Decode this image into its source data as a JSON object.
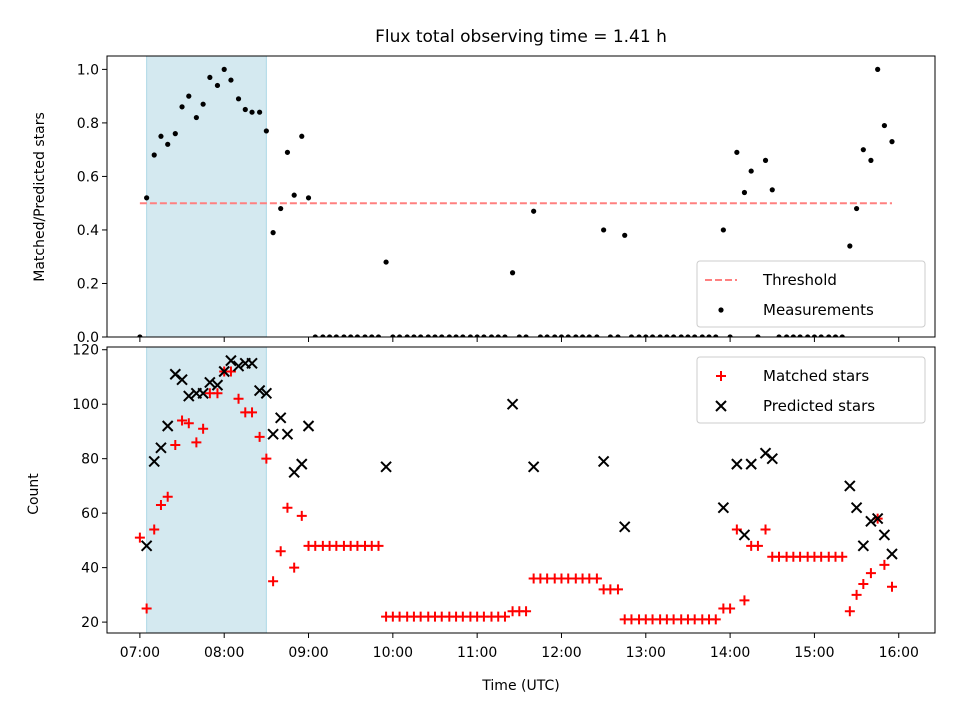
{
  "chart_data": [
    {
      "type": "scatter",
      "title": "Flux total observing time = 1.41 h",
      "ylabel": "Matched/Predicted stars",
      "xlabel": "",
      "xlim_hours": [
        6.61,
        16.43
      ],
      "ylim": [
        0,
        1.05
      ],
      "yticks": [
        0.0,
        0.2,
        0.4,
        0.6,
        0.8,
        1.0
      ],
      "ytick_labels": [
        "0.0",
        "0.2",
        "0.4",
        "0.6",
        "0.8",
        "1.0"
      ],
      "shaded_span_hours": [
        7.08,
        8.5
      ],
      "shaded_color": "#d4e9f0",
      "grid": false,
      "legend_position": "lower-right",
      "legend": [
        "Threshold",
        "Measurements"
      ],
      "threshold": {
        "name": "Threshold",
        "y": 0.5,
        "x_start": 7.0,
        "x_end": 15.92,
        "color": "#ff8080",
        "style": "dashed"
      },
      "series": [
        {
          "name": "Measurements",
          "color": "#000000",
          "points": [
            [
              7.0,
              0.0
            ],
            [
              7.08,
              0.52
            ],
            [
              7.17,
              0.68
            ],
            [
              7.25,
              0.75
            ],
            [
              7.33,
              0.72
            ],
            [
              7.42,
              0.76
            ],
            [
              7.5,
              0.86
            ],
            [
              7.58,
              0.9
            ],
            [
              7.67,
              0.82
            ],
            [
              7.75,
              0.87
            ],
            [
              7.83,
              0.97
            ],
            [
              7.92,
              0.94
            ],
            [
              8.0,
              1.0
            ],
            [
              8.08,
              0.96
            ],
            [
              8.17,
              0.89
            ],
            [
              8.25,
              0.85
            ],
            [
              8.33,
              0.84
            ],
            [
              8.42,
              0.84
            ],
            [
              8.5,
              0.77
            ],
            [
              8.58,
              0.39
            ],
            [
              8.67,
              0.48
            ],
            [
              8.75,
              0.69
            ],
            [
              8.83,
              0.53
            ],
            [
              8.92,
              0.75
            ],
            [
              9.0,
              0.52
            ],
            [
              9.08,
              0.0
            ],
            [
              9.17,
              0.0
            ],
            [
              9.25,
              0.0
            ],
            [
              9.33,
              0.0
            ],
            [
              9.42,
              0.0
            ],
            [
              9.5,
              0.0
            ],
            [
              9.58,
              0.0
            ],
            [
              9.67,
              0.0
            ],
            [
              9.75,
              0.0
            ],
            [
              9.83,
              0.0
            ],
            [
              9.92,
              0.28
            ],
            [
              10.0,
              0.0
            ],
            [
              10.08,
              0.0
            ],
            [
              10.17,
              0.0
            ],
            [
              10.25,
              0.0
            ],
            [
              10.33,
              0.0
            ],
            [
              10.42,
              0.0
            ],
            [
              10.5,
              0.0
            ],
            [
              10.58,
              0.0
            ],
            [
              10.67,
              0.0
            ],
            [
              10.75,
              0.0
            ],
            [
              10.83,
              0.0
            ],
            [
              10.92,
              0.0
            ],
            [
              11.0,
              0.0
            ],
            [
              11.08,
              0.0
            ],
            [
              11.17,
              0.0
            ],
            [
              11.25,
              0.0
            ],
            [
              11.33,
              0.0
            ],
            [
              11.42,
              0.24
            ],
            [
              11.5,
              0.0
            ],
            [
              11.58,
              0.0
            ],
            [
              11.67,
              0.47
            ],
            [
              11.75,
              0.0
            ],
            [
              11.83,
              0.0
            ],
            [
              11.92,
              0.0
            ],
            [
              12.0,
              0.0
            ],
            [
              12.08,
              0.0
            ],
            [
              12.17,
              0.0
            ],
            [
              12.25,
              0.0
            ],
            [
              12.33,
              0.0
            ],
            [
              12.42,
              0.0
            ],
            [
              12.5,
              0.4
            ],
            [
              12.58,
              0.0
            ],
            [
              12.67,
              0.0
            ],
            [
              12.75,
              0.38
            ],
            [
              12.83,
              0.0
            ],
            [
              12.92,
              0.0
            ],
            [
              13.0,
              0.0
            ],
            [
              13.08,
              0.0
            ],
            [
              13.17,
              0.0
            ],
            [
              13.25,
              0.0
            ],
            [
              13.33,
              0.0
            ],
            [
              13.42,
              0.0
            ],
            [
              13.5,
              0.0
            ],
            [
              13.58,
              0.0
            ],
            [
              13.67,
              0.0
            ],
            [
              13.75,
              0.0
            ],
            [
              13.83,
              0.0
            ],
            [
              13.92,
              0.4
            ],
            [
              14.0,
              0.0
            ],
            [
              14.08,
              0.69
            ],
            [
              14.17,
              0.54
            ],
            [
              14.25,
              0.62
            ],
            [
              14.33,
              0.0
            ],
            [
              14.42,
              0.66
            ],
            [
              14.5,
              0.55
            ],
            [
              14.58,
              0.0
            ],
            [
              14.67,
              0.0
            ],
            [
              14.75,
              0.0
            ],
            [
              14.83,
              0.0
            ],
            [
              14.92,
              0.0
            ],
            [
              15.0,
              0.0
            ],
            [
              15.08,
              0.0
            ],
            [
              15.17,
              0.0
            ],
            [
              15.25,
              0.0
            ],
            [
              15.33,
              0.0
            ],
            [
              15.42,
              0.34
            ],
            [
              15.5,
              0.48
            ],
            [
              15.58,
              0.7
            ],
            [
              15.67,
              0.66
            ],
            [
              15.75,
              1.0
            ],
            [
              15.83,
              0.79
            ],
            [
              15.92,
              0.73
            ]
          ]
        }
      ]
    },
    {
      "type": "scatter",
      "title": "",
      "ylabel": "Count",
      "xlabel": "Time (UTC)",
      "xlim_hours": [
        6.61,
        16.43
      ],
      "xticks_hours": [
        7,
        8,
        9,
        10,
        11,
        12,
        13,
        14,
        15,
        16
      ],
      "xtick_labels": [
        "07:00",
        "08:00",
        "09:00",
        "10:00",
        "11:00",
        "12:00",
        "13:00",
        "14:00",
        "15:00",
        "16:00"
      ],
      "ylim": [
        16,
        121
      ],
      "yticks": [
        20,
        40,
        60,
        80,
        100,
        120
      ],
      "ytick_labels": [
        "20",
        "40",
        "60",
        "80",
        "100",
        "120"
      ],
      "shaded_span_hours": [
        7.08,
        8.5
      ],
      "shaded_color": "#d4e9f0",
      "grid": false,
      "legend_position": "top-right",
      "legend": [
        "Matched stars",
        "Predicted stars"
      ],
      "series": [
        {
          "name": "Matched stars",
          "marker": "plus",
          "color": "#ff0000",
          "points": [
            [
              7.0,
              51
            ],
            [
              7.08,
              25
            ],
            [
              7.17,
              54
            ],
            [
              7.25,
              63
            ],
            [
              7.33,
              66
            ],
            [
              7.42,
              85
            ],
            [
              7.5,
              94
            ],
            [
              7.58,
              93
            ],
            [
              7.67,
              86
            ],
            [
              7.75,
              91
            ],
            [
              7.83,
              104
            ],
            [
              7.92,
              104
            ],
            [
              8.0,
              112
            ],
            [
              8.08,
              112
            ],
            [
              8.17,
              102
            ],
            [
              8.25,
              97
            ],
            [
              8.33,
              97
            ],
            [
              8.42,
              88
            ],
            [
              8.5,
              80
            ],
            [
              8.58,
              35
            ],
            [
              8.67,
              46
            ],
            [
              8.75,
              62
            ],
            [
              8.83,
              40
            ],
            [
              8.92,
              59
            ],
            [
              9.0,
              48
            ],
            [
              9.08,
              48
            ],
            [
              9.17,
              48
            ],
            [
              9.25,
              48
            ],
            [
              9.33,
              48
            ],
            [
              9.42,
              48
            ],
            [
              9.5,
              48
            ],
            [
              9.58,
              48
            ],
            [
              9.67,
              48
            ],
            [
              9.75,
              48
            ],
            [
              9.83,
              48
            ],
            [
              9.92,
              22
            ],
            [
              10.0,
              22
            ],
            [
              10.08,
              22
            ],
            [
              10.17,
              22
            ],
            [
              10.25,
              22
            ],
            [
              10.33,
              22
            ],
            [
              10.42,
              22
            ],
            [
              10.5,
              22
            ],
            [
              10.58,
              22
            ],
            [
              10.67,
              22
            ],
            [
              10.75,
              22
            ],
            [
              10.83,
              22
            ],
            [
              10.92,
              22
            ],
            [
              11.0,
              22
            ],
            [
              11.08,
              22
            ],
            [
              11.17,
              22
            ],
            [
              11.25,
              22
            ],
            [
              11.33,
              22
            ],
            [
              11.42,
              24
            ],
            [
              11.5,
              24
            ],
            [
              11.58,
              24
            ],
            [
              11.67,
              36
            ],
            [
              11.75,
              36
            ],
            [
              11.83,
              36
            ],
            [
              11.92,
              36
            ],
            [
              12.0,
              36
            ],
            [
              12.08,
              36
            ],
            [
              12.17,
              36
            ],
            [
              12.25,
              36
            ],
            [
              12.33,
              36
            ],
            [
              12.42,
              36
            ],
            [
              12.5,
              32
            ],
            [
              12.58,
              32
            ],
            [
              12.67,
              32
            ],
            [
              12.75,
              21
            ],
            [
              12.83,
              21
            ],
            [
              12.92,
              21
            ],
            [
              13.0,
              21
            ],
            [
              13.08,
              21
            ],
            [
              13.17,
              21
            ],
            [
              13.25,
              21
            ],
            [
              13.33,
              21
            ],
            [
              13.42,
              21
            ],
            [
              13.5,
              21
            ],
            [
              13.58,
              21
            ],
            [
              13.67,
              21
            ],
            [
              13.75,
              21
            ],
            [
              13.83,
              21
            ],
            [
              13.92,
              25
            ],
            [
              14.0,
              25
            ],
            [
              14.08,
              54
            ],
            [
              14.17,
              28
            ],
            [
              14.25,
              48
            ],
            [
              14.33,
              48
            ],
            [
              14.42,
              54
            ],
            [
              14.5,
              44
            ],
            [
              14.58,
              44
            ],
            [
              14.67,
              44
            ],
            [
              14.75,
              44
            ],
            [
              14.83,
              44
            ],
            [
              14.92,
              44
            ],
            [
              15.0,
              44
            ],
            [
              15.08,
              44
            ],
            [
              15.17,
              44
            ],
            [
              15.25,
              44
            ],
            [
              15.33,
              44
            ],
            [
              15.42,
              24
            ],
            [
              15.5,
              30
            ],
            [
              15.58,
              34
            ],
            [
              15.67,
              38
            ],
            [
              15.75,
              58
            ],
            [
              15.83,
              41
            ],
            [
              15.92,
              33
            ]
          ]
        },
        {
          "name": "Predicted stars",
          "marker": "x",
          "color": "#000000",
          "points": [
            [
              7.08,
              48
            ],
            [
              7.17,
              79
            ],
            [
              7.25,
              84
            ],
            [
              7.33,
              92
            ],
            [
              7.42,
              111
            ],
            [
              7.5,
              109
            ],
            [
              7.58,
              103
            ],
            [
              7.67,
              104
            ],
            [
              7.75,
              104
            ],
            [
              7.83,
              108
            ],
            [
              7.92,
              107
            ],
            [
              8.0,
              112
            ],
            [
              8.08,
              116
            ],
            [
              8.17,
              114
            ],
            [
              8.25,
              115
            ],
            [
              8.33,
              115
            ],
            [
              8.42,
              105
            ],
            [
              8.5,
              104
            ],
            [
              8.58,
              89
            ],
            [
              8.67,
              95
            ],
            [
              8.75,
              89
            ],
            [
              8.83,
              75
            ],
            [
              8.92,
              78
            ],
            [
              9.0,
              92
            ],
            [
              9.92,
              77
            ],
            [
              11.42,
              100
            ],
            [
              11.67,
              77
            ],
            [
              12.5,
              79
            ],
            [
              12.75,
              55
            ],
            [
              13.92,
              62
            ],
            [
              14.08,
              78
            ],
            [
              14.17,
              52
            ],
            [
              14.25,
              78
            ],
            [
              14.42,
              82
            ],
            [
              14.5,
              80
            ],
            [
              15.42,
              70
            ],
            [
              15.5,
              62
            ],
            [
              15.58,
              48
            ],
            [
              15.67,
              57
            ],
            [
              15.75,
              58
            ],
            [
              15.83,
              52
            ],
            [
              15.92,
              45
            ]
          ]
        }
      ]
    }
  ]
}
